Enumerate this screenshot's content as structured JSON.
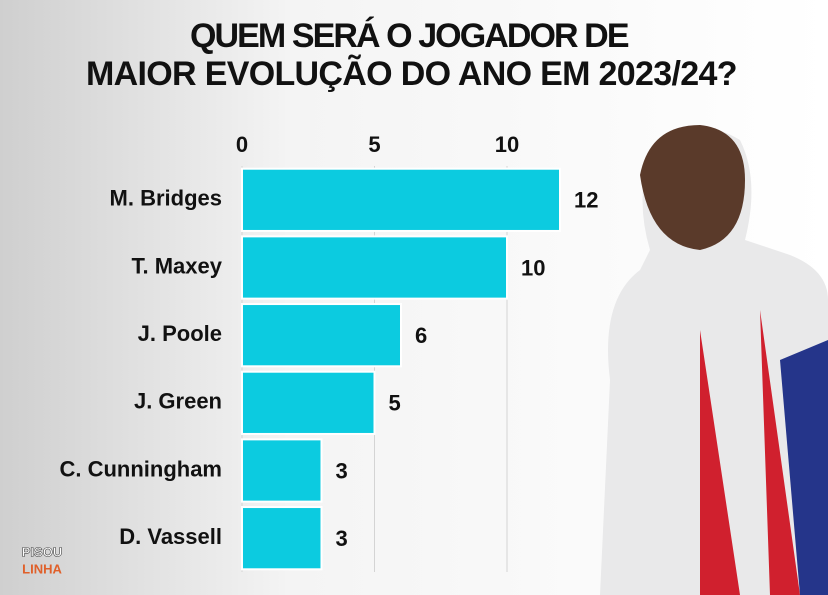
{
  "chart_data": {
    "type": "barh",
    "title": [
      "QUEM SERÁ O JOGADOR DE",
      "MAIOR EVOLUÇÃO DO ANO EM 2023/24?"
    ],
    "categories": [
      "M. Bridges",
      "T. Maxey",
      "J. Poole",
      "J. Green",
      "C. Cunningham",
      "D. Vassell"
    ],
    "values": [
      12,
      10,
      6,
      5,
      3,
      3
    ],
    "color": "#0ccbe0",
    "xlim": [
      0,
      12
    ],
    "xticks": [
      0,
      5,
      10
    ],
    "grid": true
  },
  "logo": [
    "PISOU",
    "LINHA"
  ]
}
